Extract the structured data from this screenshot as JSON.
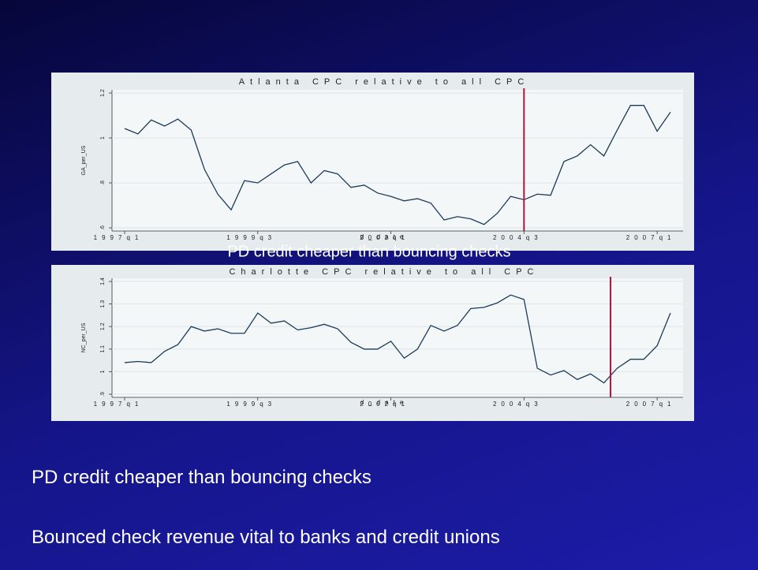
{
  "chart_data": [
    {
      "type": "line",
      "title": "Atlanta CPC relative to all CPC",
      "ylabel": "GA_per_US",
      "xlabel": "d_date",
      "categories": [
        "1997q1",
        null,
        null,
        null,
        null,
        null,
        null,
        null,
        null,
        null,
        "1999q3",
        null,
        null,
        null,
        null,
        null,
        null,
        null,
        null,
        null,
        "2002q1",
        null,
        null,
        null,
        null,
        null,
        null,
        null,
        null,
        null,
        "2004q3",
        null,
        null,
        null,
        null,
        null,
        null,
        null,
        null,
        null,
        "2007q1",
        null
      ],
      "values": [
        1.042,
        1.018,
        1.08,
        1.053,
        1.084,
        1.035,
        0.86,
        0.75,
        0.68,
        0.81,
        0.8,
        0.84,
        0.88,
        0.895,
        0.8,
        0.855,
        0.84,
        0.78,
        0.79,
        0.755,
        0.74,
        0.72,
        0.73,
        0.71,
        0.635,
        0.65,
        0.64,
        0.615,
        0.665,
        0.74,
        0.725,
        0.75,
        0.745,
        0.895,
        0.92,
        0.97,
        0.92,
        1.035,
        1.145,
        1.145,
        1.03,
        1.115
      ],
      "color": "#1c3a5a",
      "ylim": [
        0.6,
        1.2
      ],
      "yticks": [
        {
          "value": 0.6,
          "label": ".6"
        },
        {
          "value": 0.8,
          "label": ".8"
        },
        1,
        1.2
      ],
      "grid": true,
      "vline": {
        "at": 30,
        "color": "#b0123f"
      }
    },
    {
      "type": "line",
      "title": "Charlotte CPC relative to all CPC",
      "ylabel": "NC_per_US",
      "xlabel": "d_date",
      "categories": [
        "1997q1",
        null,
        null,
        null,
        null,
        null,
        null,
        null,
        null,
        null,
        "1999q3",
        null,
        null,
        null,
        null,
        null,
        null,
        null,
        null,
        null,
        "2002q1",
        null,
        null,
        null,
        null,
        null,
        null,
        null,
        null,
        null,
        "2004q3",
        null,
        null,
        null,
        null,
        null,
        null,
        null,
        null,
        null,
        "2007q1",
        null
      ],
      "values": [
        1.04,
        1.045,
        1.04,
        1.09,
        1.12,
        1.2,
        1.18,
        1.19,
        1.17,
        1.17,
        1.26,
        1.215,
        1.225,
        1.185,
        1.195,
        1.21,
        1.19,
        1.13,
        1.1,
        1.1,
        1.135,
        1.06,
        1.1,
        1.205,
        1.18,
        1.205,
        1.28,
        1.285,
        1.305,
        1.34,
        1.32,
        1.015,
        0.985,
        1.005,
        0.965,
        0.99,
        0.95,
        1.015,
        1.055,
        1.055,
        1.115,
        1.26
      ],
      "color": "#1c3a5a",
      "ylim": [
        0.9,
        1.4
      ],
      "yticks": [
        {
          "value": 0.9,
          "label": ".9"
        },
        1,
        1.1,
        1.2,
        1.3,
        1.4
      ],
      "grid": true,
      "vline": {
        "at": 36.5,
        "color": "#b0123f"
      }
    }
  ],
  "slide": {
    "overlay": "PD credit cheaper than bouncing checks",
    "bullets": [
      "PD credit cheaper than bouncing checks",
      "Bounced check revenue vital to banks and credit unions"
    ]
  }
}
